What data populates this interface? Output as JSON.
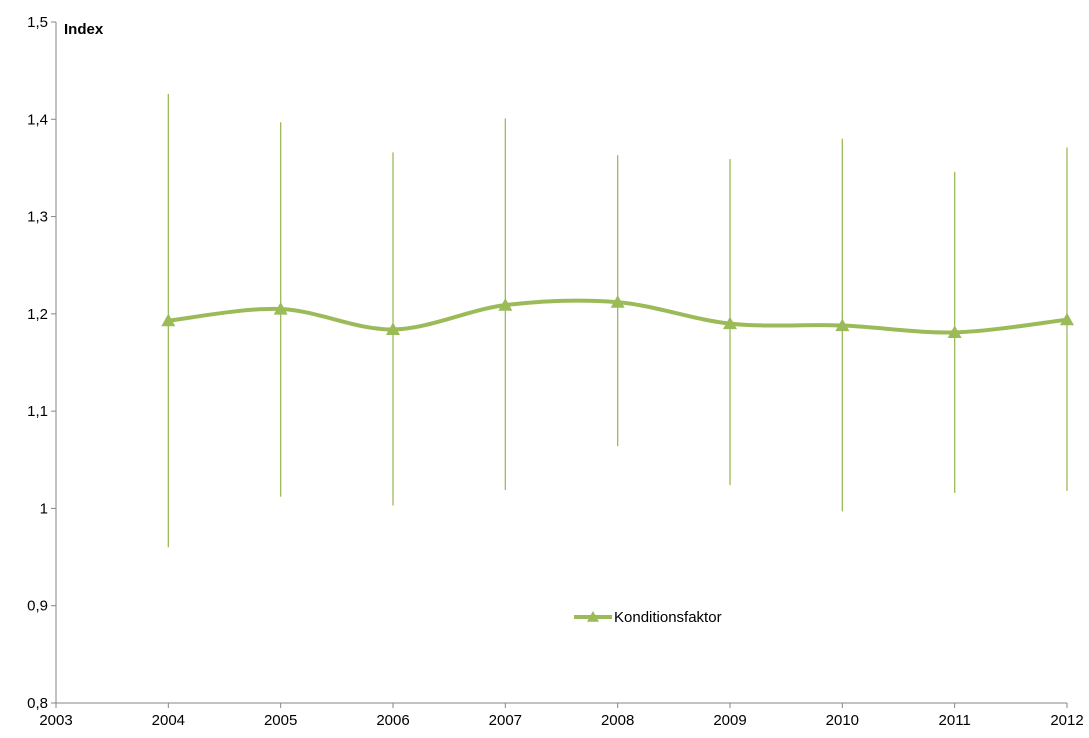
{
  "chart_data": {
    "type": "line",
    "ylabel": "Index",
    "xlim": [
      2003,
      2012
    ],
    "ylim": [
      0.8,
      1.5
    ],
    "x_ticks": [
      "2003",
      "2004",
      "2005",
      "2006",
      "2007",
      "2008",
      "2009",
      "2010",
      "2011",
      "2012"
    ],
    "y_ticks": [
      "0,8",
      "0,9",
      "1",
      "1,1",
      "1,2",
      "1,3",
      "1,4",
      "1,5"
    ],
    "grid": false,
    "legend_position": "center-bottom",
    "smooth": true,
    "error_bars": true,
    "series": [
      {
        "name": "Konditionsfaktor",
        "color": "#9bbb59",
        "marker": "triangle",
        "x": [
          2004,
          2005,
          2006,
          2007,
          2008,
          2009,
          2010,
          2011,
          2012
        ],
        "y": [
          1.193,
          1.205,
          1.184,
          1.209,
          1.212,
          1.19,
          1.188,
          1.181,
          1.194
        ],
        "error_low": [
          0.96,
          1.012,
          1.003,
          1.019,
          1.064,
          1.024,
          0.997,
          1.016,
          1.018
        ],
        "error_high": [
          1.426,
          1.397,
          1.366,
          1.401,
          1.363,
          1.359,
          1.38,
          1.346,
          1.371
        ]
      }
    ]
  }
}
